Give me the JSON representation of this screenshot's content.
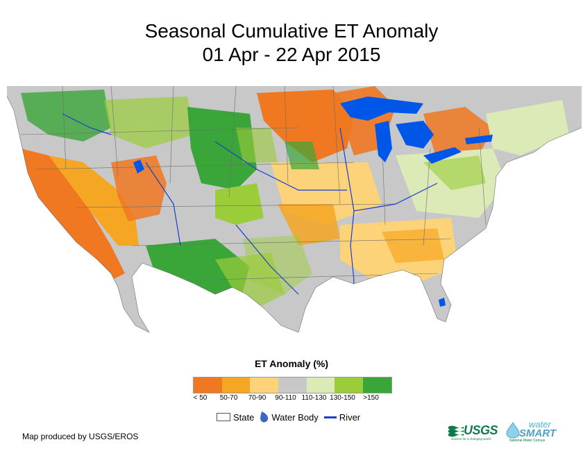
{
  "title": {
    "line1": "Seasonal Cumulative ET Anomaly",
    "line2": "01 Apr - 22 Apr 2015"
  },
  "legend": {
    "title": "ET Anomaly (%)",
    "classes": [
      {
        "label": "< 50",
        "color": "#f07821"
      },
      {
        "label": "50-70",
        "color": "#f5a623"
      },
      {
        "label": "70-90",
        "color": "#fdd37a"
      },
      {
        "label": "90-110",
        "color": "#c8c8c8"
      },
      {
        "label": "110-130",
        "color": "#dceab8"
      },
      {
        "label": "130-150",
        "color": "#9bcc3a"
      },
      {
        "label": ">150",
        "color": "#3aa63a"
      }
    ],
    "symbols": {
      "state": "State",
      "water_body": "Water Body",
      "river": "River"
    },
    "water_color": "#0057e7",
    "river_color": "#1a3ccf"
  },
  "credit": "Map produced by USGS/EROS",
  "logos": {
    "usgs": "USGS",
    "usgs_tagline": "science for a changing world",
    "water": "water",
    "smart": "SMART",
    "nwc": "National Water Census"
  }
}
